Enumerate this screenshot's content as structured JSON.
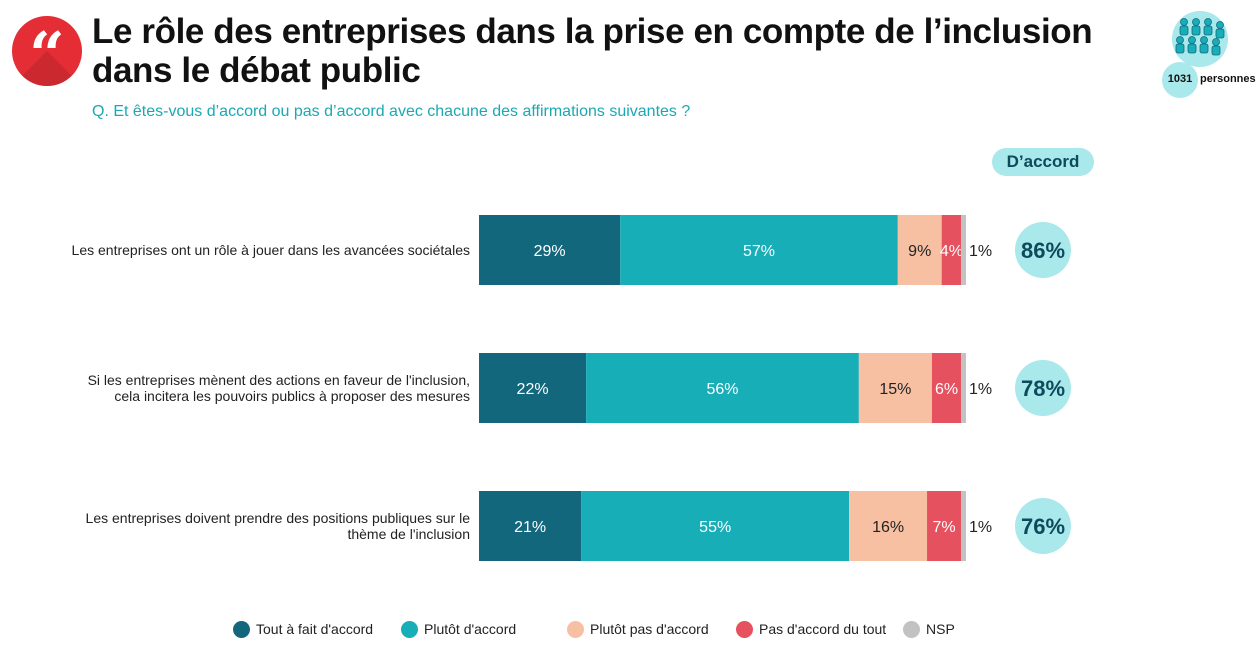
{
  "header": {
    "quote_glyph": "“",
    "title": "Le rôle des entreprises dans la prise en compte de l’inclusion dans le débat public",
    "question": "Q. Et êtes-vous d’accord ou pas d’accord avec chacune des affirmations suivantes ?",
    "sample_count": "1031",
    "sample_label": "personnes"
  },
  "agree_header": "D’accord",
  "colors": {
    "tout_a_fait": "#13677d",
    "plutot": "#17aeb8",
    "plutot_pas": "#f7c0a2",
    "pas_du_tout": "#e5515e",
    "nsp": "#c2c2c2",
    "agree_bubble": "#a9e8eb",
    "agree_text": "#0d4a5c"
  },
  "chart_data": {
    "type": "bar",
    "orientation": "horizontal",
    "stacked": true,
    "xlim": [
      0,
      100
    ],
    "categories": [
      "Les entreprises ont un rôle à jouer dans les avancées sociétales",
      "Si les entreprises mènent des actions en faveur de l'inclusion, cela incitera les pouvoirs publics à proposer des mesures",
      "Les entreprises doivent prendre des positions publiques sur le thème de l'inclusion"
    ],
    "category_lines": [
      [
        "Les entreprises ont un rôle à jouer dans les avancées sociétales"
      ],
      [
        "Si les entreprises mènent des actions en faveur de l'inclusion,",
        "cela incitera les pouvoirs publics à proposer des mesures"
      ],
      [
        "Les entreprises doivent prendre des positions publiques sur le",
        "thème de l'inclusion"
      ]
    ],
    "series": [
      {
        "name": "Tout à fait d'accord",
        "color_key": "tout_a_fait",
        "values": [
          29,
          22,
          21
        ]
      },
      {
        "name": "Plutôt d'accord",
        "color_key": "plutot",
        "values": [
          57,
          56,
          55
        ]
      },
      {
        "name": "Plutôt pas d'accord",
        "color_key": "plutot_pas",
        "values": [
          9,
          15,
          16
        ]
      },
      {
        "name": "Pas d'accord du tout",
        "color_key": "pas_du_tout",
        "values": [
          4,
          6,
          7
        ]
      },
      {
        "name": "NSP",
        "color_key": "nsp",
        "values": [
          1,
          1,
          1
        ]
      }
    ],
    "agree_totals": [
      "86%",
      "78%",
      "76%"
    ]
  }
}
